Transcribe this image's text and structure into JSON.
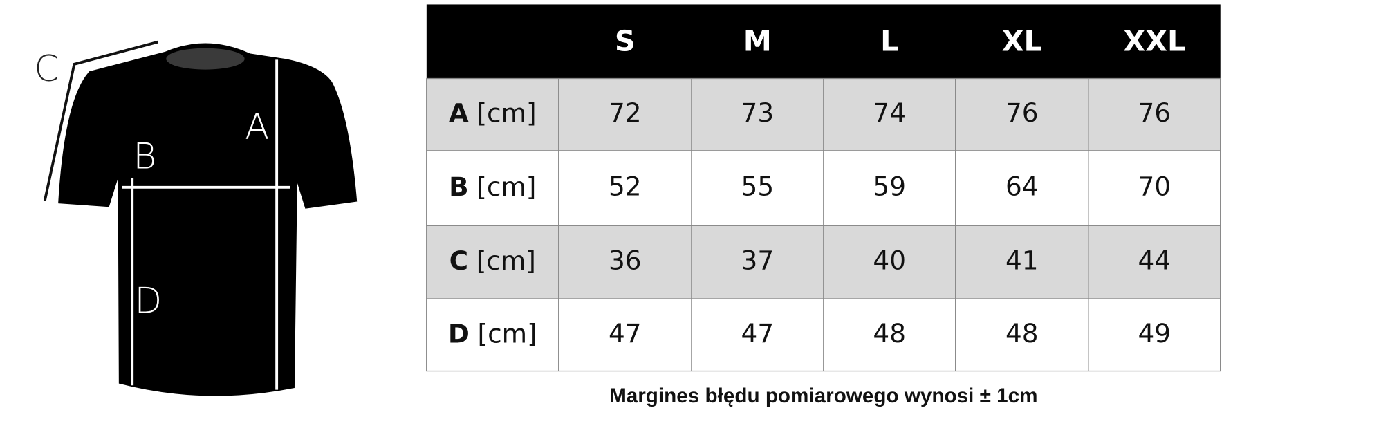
{
  "diagram": {
    "labels": {
      "a": "A",
      "b": "B",
      "c": "C",
      "d": "D"
    }
  },
  "table": {
    "header": [
      "S",
      "M",
      "L",
      "XL",
      "XXL"
    ],
    "rows": [
      {
        "label": "A",
        "unit": "[cm]",
        "values": [
          72,
          73,
          74,
          76,
          76
        ]
      },
      {
        "label": "B",
        "unit": "[cm]",
        "values": [
          52,
          55,
          59,
          64,
          70
        ]
      },
      {
        "label": "C",
        "unit": "[cm]",
        "values": [
          36,
          37,
          40,
          41,
          44
        ]
      },
      {
        "label": "D",
        "unit": "[cm]",
        "values": [
          47,
          47,
          48,
          48,
          49
        ]
      }
    ]
  },
  "note": "Margines błędu pomiarowego wynosi ± 1cm"
}
